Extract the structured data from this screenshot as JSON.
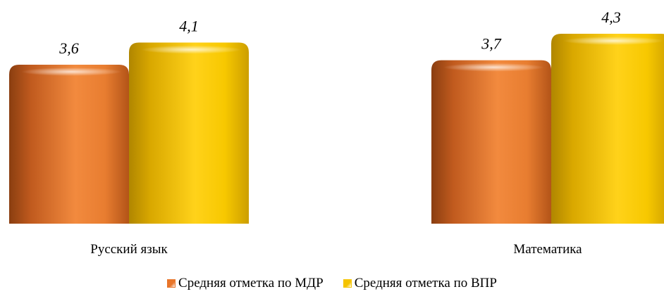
{
  "chart_data": {
    "type": "bar",
    "title": "",
    "xlabel": "",
    "ylabel": "",
    "categories": [
      "Русский язык",
      "Математика"
    ],
    "ylim": [
      0,
      4.3
    ],
    "grid": false,
    "legend_position": "bottom",
    "series": [
      {
        "name": "Средняя отметка по МДР",
        "values": [
          3.6,
          3.7
        ],
        "color": "#E8752A",
        "value_labels": [
          "3,6",
          "3,7"
        ]
      },
      {
        "name": "Средняя отметка по ВПР",
        "values": [
          4.1,
          4.3
        ],
        "color": "#F5C400",
        "value_labels": [
          "4,1",
          "4,3"
        ]
      }
    ]
  }
}
